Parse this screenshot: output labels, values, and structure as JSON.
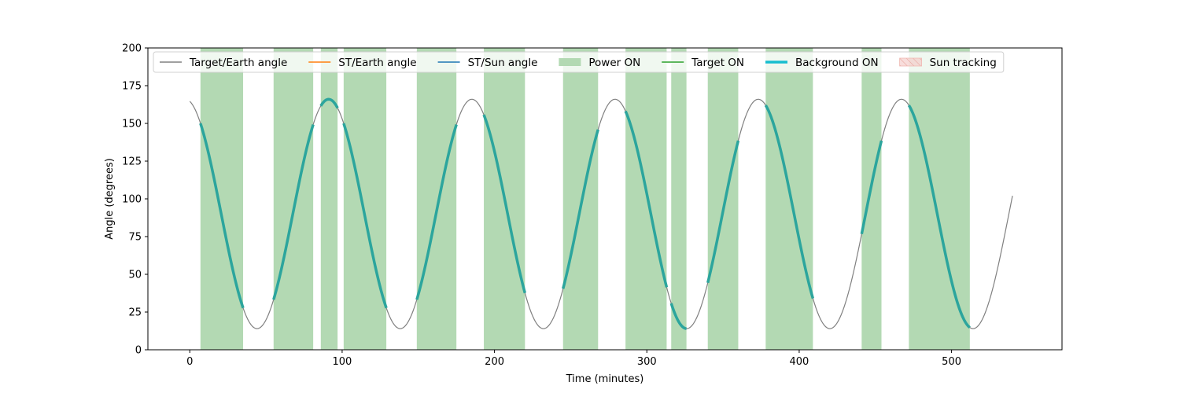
{
  "chart_data": {
    "type": "line",
    "title": "",
    "xlabel": "Time (minutes)",
    "ylabel": "Angle (degrees)",
    "xlim": [
      -27.5,
      572.5
    ],
    "ylim": [
      0,
      200
    ],
    "xticks": [
      0,
      100,
      200,
      300,
      400,
      500
    ],
    "yticks": [
      0,
      25,
      50,
      75,
      100,
      125,
      150,
      175,
      200
    ],
    "grid": false,
    "legend_position": "top-left",
    "target_earth_angle": {
      "t_start": 0,
      "t_end": 540,
      "mean": 90,
      "amplitude": 76,
      "period_minutes": 94,
      "phase_degrees": 101,
      "color": "#808080"
    },
    "power_on_intervals": [
      [
        7,
        35
      ],
      [
        55,
        81
      ],
      [
        86,
        97
      ],
      [
        101,
        129
      ],
      [
        149,
        175
      ],
      [
        193,
        220
      ],
      [
        245,
        268
      ],
      [
        286,
        313
      ],
      [
        316,
        326
      ],
      [
        340,
        360
      ],
      [
        378,
        409
      ],
      [
        441,
        454
      ],
      [
        472,
        512
      ]
    ],
    "background_on_intervals": [
      [
        7,
        35
      ],
      [
        55,
        81
      ],
      [
        86,
        97
      ],
      [
        101,
        129
      ],
      [
        149,
        175
      ],
      [
        193,
        220
      ],
      [
        245,
        268
      ],
      [
        286,
        313
      ],
      [
        316,
        326
      ],
      [
        340,
        360
      ],
      [
        378,
        409
      ],
      [
        441,
        454
      ],
      [
        472,
        512
      ]
    ],
    "colors": {
      "target_earth": "#808080",
      "st_earth": "#ff7f0e",
      "st_sun": "#1f77b4",
      "power_on": "#b3d9b3",
      "target_on": "#2ca02c",
      "background_on": "#2ca59d",
      "background_legend": "#17becf",
      "sun_tracking": "#f4c7c3"
    },
    "legend": [
      {
        "key": "target_earth",
        "label": "Target/Earth angle",
        "kind": "line"
      },
      {
        "key": "st_earth",
        "label": "ST/Earth angle",
        "kind": "line"
      },
      {
        "key": "st_sun",
        "label": "ST/Sun angle",
        "kind": "line"
      },
      {
        "key": "power_on",
        "label": "Power ON",
        "kind": "patch"
      },
      {
        "key": "target_on",
        "label": "Target ON",
        "kind": "line"
      },
      {
        "key": "background_legend",
        "label": "Background ON",
        "kind": "thickline"
      },
      {
        "key": "sun_tracking",
        "label": "Sun tracking",
        "kind": "hatch"
      }
    ]
  }
}
